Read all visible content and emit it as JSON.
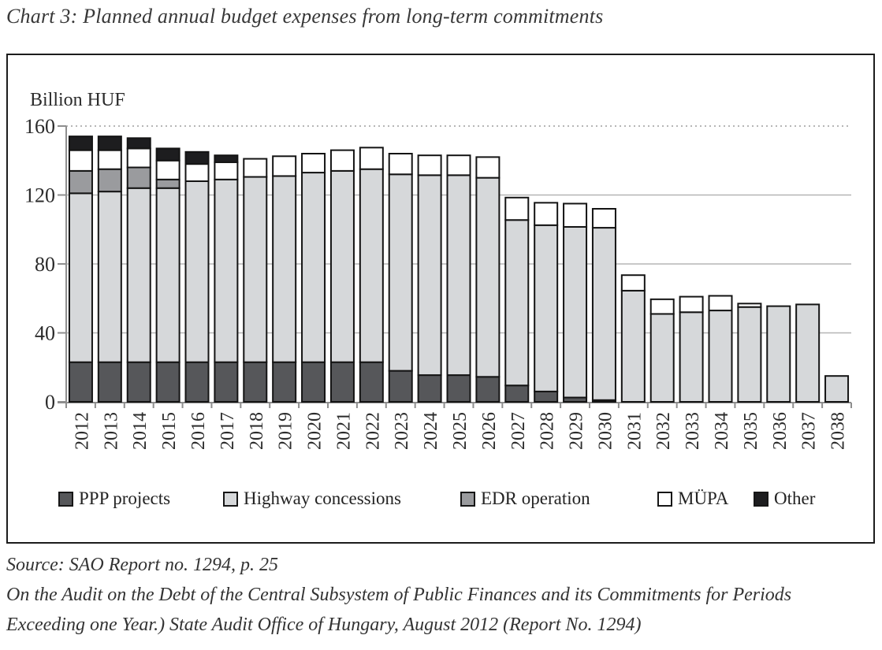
{
  "page": {
    "title": "Chart 3: Planned annual budget expenses from long-term commitments",
    "footer_lines": [
      "Source:  SAO Report no. 1294, p. 25",
      "On the Audit on the Debt of the Central Subsystem of Public Finances and its Commitments for Periods",
      "Exceeding one Year.) State Audit Office of Hungary, August 2012 (Report No. 1294)"
    ]
  },
  "chart_data": {
    "type": "bar",
    "stacked": true,
    "unit_label": "Billion HUF",
    "xlabel": "",
    "ylabel": "Billion HUF",
    "ylim": [
      0,
      160
    ],
    "yticks": [
      0,
      40,
      80,
      120,
      160
    ],
    "grid": true,
    "legend_position": "bottom-inside",
    "categories": [
      "2012",
      "2013",
      "2014",
      "2015",
      "2016",
      "2017",
      "2018",
      "2019",
      "2020",
      "2021",
      "2022",
      "2023",
      "2024",
      "2025",
      "2026",
      "2027",
      "2028",
      "2029",
      "2030",
      "2031",
      "2032",
      "2033",
      "2034",
      "2035",
      "2036",
      "2037",
      "2038"
    ],
    "series": [
      {
        "name": "PPP projects",
        "color": "#56575a",
        "values": [
          23,
          23,
          23,
          23,
          23,
          23,
          23,
          23,
          23,
          23,
          23,
          18,
          15.5,
          15.5,
          14.5,
          9.5,
          6,
          2.5,
          1,
          0,
          0,
          0,
          0,
          0,
          0,
          0,
          0
        ]
      },
      {
        "name": "Highway concessions",
        "color": "#d6d8da",
        "values": [
          98,
          99,
          101,
          101,
          105,
          106,
          107.5,
          108,
          110,
          111,
          112,
          114,
          116,
          116,
          115.5,
          96,
          96.5,
          99,
          100,
          64.5,
          51,
          52,
          53,
          55,
          55.5,
          56.5,
          15
        ]
      },
      {
        "name": "EDR operation",
        "color": "#9a9b9e",
        "values": [
          13,
          13,
          12,
          5,
          0,
          0,
          0,
          0,
          0,
          0,
          0,
          0,
          0,
          0,
          0,
          0,
          0,
          0,
          0,
          0,
          0,
          0,
          0,
          0,
          0,
          0,
          0
        ]
      },
      {
        "name": "MÜPA",
        "color": "#ffffff",
        "values": [
          12,
          11,
          11,
          11,
          10,
          10,
          10.5,
          11.5,
          11,
          12,
          12.5,
          12,
          11.5,
          11.5,
          12,
          13,
          13,
          13.5,
          11,
          9,
          8.5,
          9,
          8.5,
          2,
          0,
          0,
          0
        ]
      },
      {
        "name": "Other",
        "color": "#1d1d1f",
        "values": [
          8,
          8,
          6,
          7,
          7,
          4,
          0,
          0,
          0,
          0,
          0,
          0,
          0,
          0,
          0,
          0,
          0,
          0,
          0,
          0,
          0,
          0,
          0,
          0,
          0,
          0,
          0
        ]
      }
    ],
    "style": {
      "bar_border_color": "#141414",
      "axis_color": "#8e8e8e",
      "gridline_color": "#b5b5b5",
      "top_gridline_color": "#9e9e9e",
      "tick_label_color": "#2b2b2b"
    }
  }
}
